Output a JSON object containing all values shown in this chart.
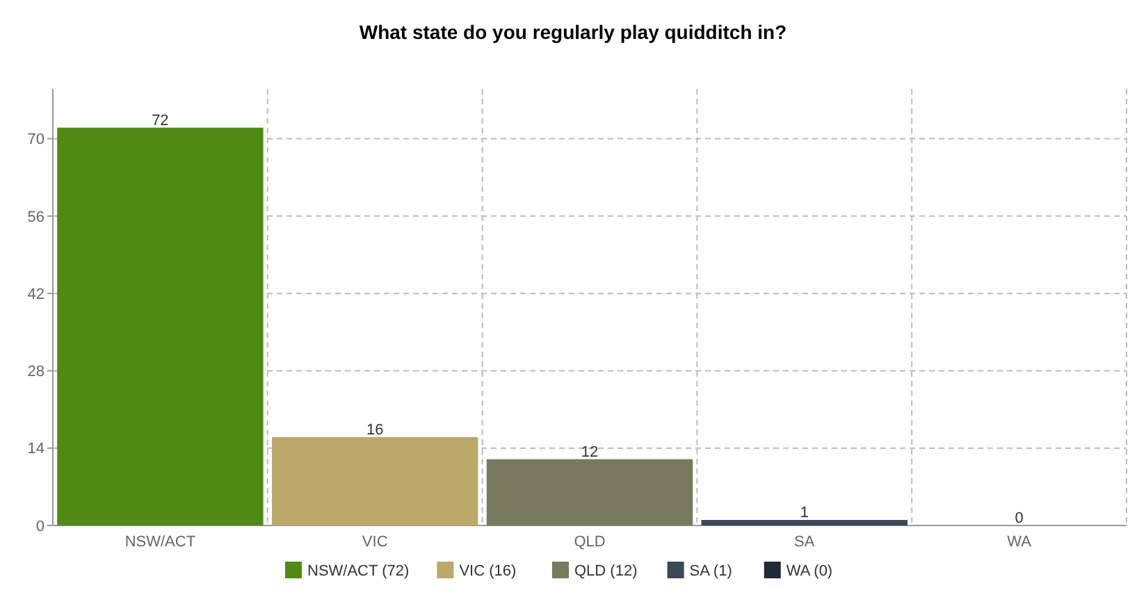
{
  "chart_data": {
    "type": "bar",
    "title": "What state do you regularly play quidditch in?",
    "categories": [
      "NSW/ACT",
      "VIC",
      "QLD",
      "SA",
      "WA"
    ],
    "stacked": true,
    "series": [
      {
        "name": "NSW/ACT (72)",
        "color": "#4e8a14",
        "values": [
          72,
          null,
          null,
          null,
          null
        ]
      },
      {
        "name": "VIC (16)",
        "color": "#bba96b",
        "values": [
          null,
          16,
          null,
          null,
          null
        ]
      },
      {
        "name": "QLD (12)",
        "color": "#777a5e",
        "values": [
          null,
          null,
          12,
          null,
          null
        ]
      },
      {
        "name": "SA (1)",
        "color": "#3b4858",
        "values": [
          null,
          null,
          null,
          1,
          null
        ]
      },
      {
        "name": "WA (0)",
        "color": "#1e2a3a",
        "values": [
          null,
          null,
          null,
          null,
          0
        ]
      }
    ],
    "ylim": [
      0,
      79
    ],
    "yticks": [
      0,
      14,
      28,
      42,
      56,
      70
    ],
    "grid": true,
    "data_labels": true,
    "legend": "bottom"
  }
}
